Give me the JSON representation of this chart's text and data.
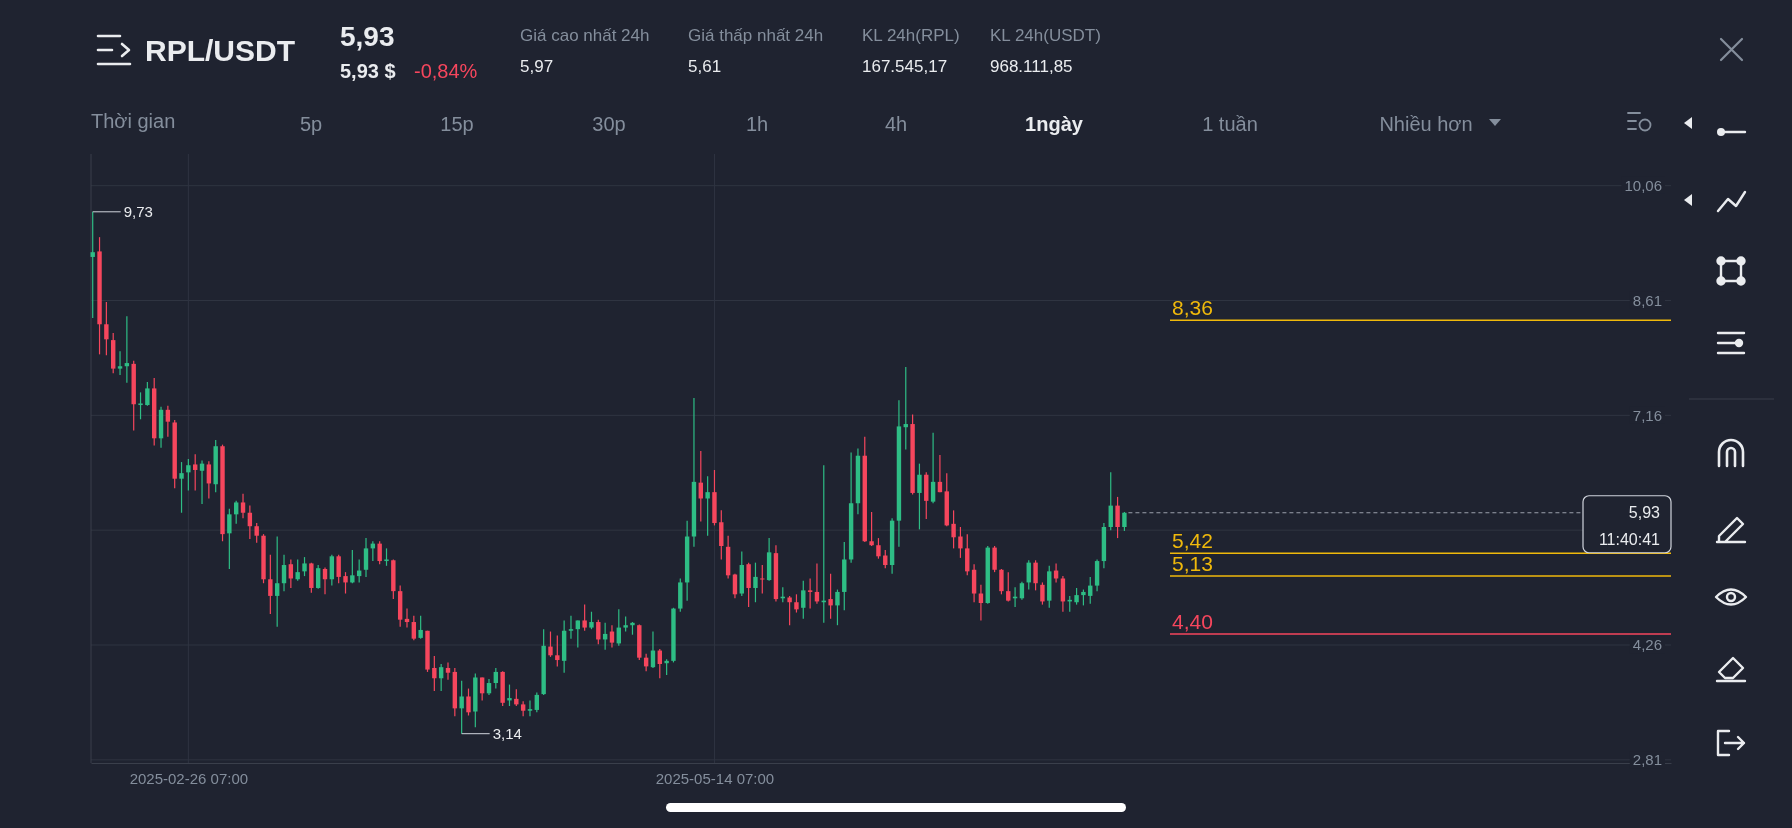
{
  "chart_data": {
    "type": "candlestick",
    "title": "RPL/USDT",
    "x": [
      "2025-02-12T07:00",
      "2025-02-13T07:00",
      "2025-02-14T07:00",
      "2025-02-15T07:00",
      "2025-02-16T07:00",
      "2025-02-17T07:00",
      "2025-02-18T07:00",
      "2025-02-19T07:00",
      "2025-02-20T07:00",
      "2025-02-21T07:00",
      "2025-02-22T07:00",
      "2025-02-23T07:00",
      "2025-02-24T07:00",
      "2025-02-25T07:00",
      "2025-02-26T07:00",
      "2025-02-27T07:00",
      "2025-02-28T07:00",
      "2025-03-01T07:00",
      "2025-03-02T07:00",
      "2025-03-03T07:00",
      "2025-03-04T07:00",
      "2025-03-05T07:00",
      "2025-03-06T07:00",
      "2025-03-07T07:00",
      "2025-03-08T07:00",
      "2025-03-09T07:00",
      "2025-03-10T07:00",
      "2025-03-11T07:00",
      "2025-03-12T07:00",
      "2025-03-13T07:00",
      "2025-03-14T07:00",
      "2025-03-15T07:00",
      "2025-03-16T07:00",
      "2025-03-17T07:00",
      "2025-03-18T07:00",
      "2025-03-19T07:00",
      "2025-03-20T07:00",
      "2025-03-21T07:00",
      "2025-03-22T07:00",
      "2025-03-23T07:00",
      "2025-03-24T07:00",
      "2025-03-25T07:00",
      "2025-03-26T07:00",
      "2025-03-27T07:00",
      "2025-03-28T07:00",
      "2025-03-29T07:00",
      "2025-03-30T07:00",
      "2025-03-31T07:00",
      "2025-04-01T07:00",
      "2025-04-02T07:00",
      "2025-04-03T07:00",
      "2025-04-04T07:00",
      "2025-04-05T07:00",
      "2025-04-06T07:00",
      "2025-04-07T07:00",
      "2025-04-08T07:00",
      "2025-04-09T07:00",
      "2025-04-10T07:00",
      "2025-04-11T07:00",
      "2025-04-12T07:00",
      "2025-04-13T07:00",
      "2025-04-14T07:00",
      "2025-04-15T07:00",
      "2025-04-16T07:00",
      "2025-04-17T07:00",
      "2025-04-18T07:00",
      "2025-04-19T07:00",
      "2025-04-20T07:00",
      "2025-04-21T07:00",
      "2025-04-22T07:00",
      "2025-04-23T07:00",
      "2025-04-24T07:00",
      "2025-04-25T07:00",
      "2025-04-26T07:00",
      "2025-04-27T07:00",
      "2025-04-28T07:00",
      "2025-04-29T07:00",
      "2025-04-30T07:00",
      "2025-05-01T07:00",
      "2025-05-02T07:00",
      "2025-05-03T07:00",
      "2025-05-04T07:00",
      "2025-05-05T07:00",
      "2025-05-06T07:00",
      "2025-05-07T07:00",
      "2025-05-08T07:00",
      "2025-05-09T07:00",
      "2025-05-10T07:00",
      "2025-05-11T07:00",
      "2025-05-12T07:00",
      "2025-05-13T07:00",
      "2025-05-14T07:00",
      "2025-05-15T07:00",
      "2025-05-16T07:00",
      "2025-05-17T07:00",
      "2025-05-18T07:00",
      "2025-05-19T07:00",
      "2025-05-20T07:00",
      "2025-05-21T07:00",
      "2025-05-22T07:00",
      "2025-05-23T07:00",
      "2025-05-24T07:00",
      "2025-05-25T07:00",
      "2025-05-26T07:00",
      "2025-05-27T07:00",
      "2025-05-28T07:00",
      "2025-05-29T07:00",
      "2025-05-30T07:00",
      "2025-05-31T07:00",
      "2025-06-01T07:00",
      "2025-06-02T07:00",
      "2025-06-03T07:00",
      "2025-06-04T07:00",
      "2025-06-05T07:00",
      "2025-06-06T07:00",
      "2025-06-07T07:00",
      "2025-06-08T07:00",
      "2025-06-09T07:00",
      "2025-06-10T07:00",
      "2025-06-11T07:00",
      "2025-06-12T07:00",
      "2025-06-13T07:00",
      "2025-06-14T07:00",
      "2025-06-15T07:00",
      "2025-06-16T07:00",
      "2025-06-17T07:00",
      "2025-06-18T07:00",
      "2025-06-19T07:00",
      "2025-06-20T07:00",
      "2025-06-21T07:00",
      "2025-06-22T07:00",
      "2025-06-23T07:00",
      "2025-06-24T07:00",
      "2025-06-25T07:00",
      "2025-06-26T07:00",
      "2025-06-27T07:00",
      "2025-06-28T07:00",
      "2025-06-29T07:00",
      "2025-06-30T07:00",
      "2025-07-01T07:00",
      "2025-07-02T07:00",
      "2025-07-03T07:00",
      "2025-07-04T07:00",
      "2025-07-05T07:00",
      "2025-07-06T07:00",
      "2025-07-07T07:00",
      "2025-07-08T07:00",
      "2025-07-09T07:00",
      "2025-07-10T07:00",
      "2025-07-11T07:00",
      "2025-07-12T07:00",
      "2025-07-13T07:00"
    ],
    "ohlc": [
      [
        9.16,
        9.73,
        8.39,
        9.22
      ],
      [
        9.23,
        9.41,
        7.93,
        8.31
      ],
      [
        8.31,
        8.59,
        7.92,
        8.12
      ],
      [
        8.11,
        8.2,
        7.69,
        7.75
      ],
      [
        7.75,
        7.97,
        7.67,
        7.78
      ],
      [
        7.78,
        8.41,
        7.57,
        7.82
      ],
      [
        7.81,
        7.85,
        6.97,
        7.3
      ],
      [
        7.29,
        7.45,
        7.11,
        7.31
      ],
      [
        7.29,
        7.58,
        7.28,
        7.5
      ],
      [
        7.5,
        7.63,
        6.78,
        6.87
      ],
      [
        6.87,
        7.27,
        6.75,
        7.23
      ],
      [
        7.23,
        7.28,
        6.89,
        7.08
      ],
      [
        7.07,
        7.1,
        6.24,
        6.36
      ],
      [
        6.36,
        6.57,
        5.93,
        6.43
      ],
      [
        6.44,
        6.61,
        6.21,
        6.53
      ],
      [
        6.54,
        6.67,
        6.21,
        6.47
      ],
      [
        6.46,
        6.59,
        6.04,
        6.55
      ],
      [
        6.54,
        6.58,
        6.11,
        6.3
      ],
      [
        6.29,
        6.85,
        6.19,
        6.77
      ],
      [
        6.77,
        6.79,
        5.57,
        5.66
      ],
      [
        5.67,
        5.98,
        5.22,
        5.91
      ],
      [
        5.91,
        6.08,
        5.79,
        6.06
      ],
      [
        6.06,
        6.17,
        5.86,
        5.93
      ],
      [
        5.93,
        6.02,
        5.6,
        5.76
      ],
      [
        5.76,
        5.8,
        5.55,
        5.64
      ],
      [
        5.64,
        5.66,
        5.04,
        5.09
      ],
      [
        5.09,
        5.4,
        4.65,
        4.88
      ],
      [
        4.88,
        5.63,
        4.49,
        5.04
      ],
      [
        5.04,
        5.4,
        4.94,
        5.27
      ],
      [
        5.28,
        5.34,
        4.98,
        5.1
      ],
      [
        5.09,
        5.34,
        5.07,
        5.18
      ],
      [
        5.19,
        5.37,
        5.13,
        5.29
      ],
      [
        5.29,
        5.3,
        4.92,
        4.98
      ],
      [
        4.98,
        5.27,
        4.97,
        5.23
      ],
      [
        5.22,
        5.24,
        4.9,
        5.09
      ],
      [
        5.09,
        5.4,
        5.01,
        5.38
      ],
      [
        5.38,
        5.4,
        5.04,
        5.12
      ],
      [
        5.13,
        5.18,
        4.91,
        5.05
      ],
      [
        5.05,
        5.46,
        5.04,
        5.14
      ],
      [
        5.13,
        5.34,
        5.05,
        5.2
      ],
      [
        5.21,
        5.61,
        5.12,
        5.48
      ],
      [
        5.48,
        5.57,
        5.32,
        5.54
      ],
      [
        5.54,
        5.57,
        5.28,
        5.32
      ],
      [
        5.32,
        5.48,
        5.26,
        5.34
      ],
      [
        5.33,
        5.34,
        4.84,
        4.94
      ],
      [
        4.94,
        5.01,
        4.49,
        4.58
      ],
      [
        4.59,
        4.72,
        4.48,
        4.55
      ],
      [
        4.55,
        4.63,
        4.32,
        4.34
      ],
      [
        4.35,
        4.63,
        4.34,
        4.45
      ],
      [
        4.44,
        4.44,
        3.92,
        3.95
      ],
      [
        3.97,
        4.12,
        3.68,
        3.84
      ],
      [
        3.84,
        4.02,
        3.68,
        3.98
      ],
      [
        3.97,
        4.04,
        3.82,
        3.91
      ],
      [
        3.92,
        3.97,
        3.36,
        3.46
      ],
      [
        3.46,
        3.81,
        3.14,
        3.61
      ],
      [
        3.61,
        3.71,
        3.37,
        3.41
      ],
      [
        3.42,
        3.9,
        3.22,
        3.85
      ],
      [
        3.85,
        3.85,
        3.56,
        3.65
      ],
      [
        3.65,
        3.83,
        3.63,
        3.78
      ],
      [
        3.78,
        3.97,
        3.71,
        3.92
      ],
      [
        3.92,
        3.93,
        3.49,
        3.53
      ],
      [
        3.56,
        3.76,
        3.49,
        3.59
      ],
      [
        3.58,
        3.7,
        3.49,
        3.51
      ],
      [
        3.51,
        3.55,
        3.36,
        3.43
      ],
      [
        3.43,
        3.56,
        3.36,
        3.45
      ],
      [
        3.44,
        3.66,
        3.41,
        3.63
      ],
      [
        3.64,
        4.46,
        3.63,
        4.25
      ],
      [
        4.24,
        4.43,
        4.11,
        4.13
      ],
      [
        4.13,
        4.38,
        3.99,
        4.07
      ],
      [
        4.06,
        4.57,
        3.91,
        4.44
      ],
      [
        4.44,
        4.63,
        4.34,
        4.46
      ],
      [
        4.46,
        4.57,
        4.23,
        4.57
      ],
      [
        4.57,
        4.77,
        4.44,
        4.48
      ],
      [
        4.48,
        4.68,
        4.46,
        4.55
      ],
      [
        4.55,
        4.58,
        4.27,
        4.33
      ],
      [
        4.33,
        4.54,
        4.2,
        4.4
      ],
      [
        4.43,
        4.51,
        4.23,
        4.29
      ],
      [
        4.28,
        4.71,
        4.25,
        4.48
      ],
      [
        4.48,
        4.62,
        4.43,
        4.51
      ],
      [
        4.51,
        4.55,
        4.39,
        4.54
      ],
      [
        4.51,
        4.52,
        4.07,
        4.1
      ],
      [
        4.1,
        4.15,
        3.93,
        3.99
      ],
      [
        3.98,
        4.43,
        3.97,
        4.19
      ],
      [
        4.19,
        4.21,
        3.84,
        4.02
      ],
      [
        4.03,
        4.08,
        3.88,
        4.06
      ],
      [
        4.06,
        4.73,
        4.04,
        4.72
      ],
      [
        4.72,
        5.1,
        4.68,
        5.05
      ],
      [
        5.05,
        5.83,
        4.82,
        5.63
      ],
      [
        5.63,
        7.38,
        5.5,
        6.32
      ],
      [
        6.31,
        6.71,
        5.82,
        6.11
      ],
      [
        6.11,
        6.39,
        5.64,
        6.19
      ],
      [
        6.19,
        6.47,
        5.77,
        5.8
      ],
      [
        5.81,
        5.96,
        5.34,
        5.51
      ],
      [
        5.5,
        5.64,
        5.1,
        5.14
      ],
      [
        5.15,
        5.16,
        4.85,
        4.9
      ],
      [
        4.91,
        5.44,
        4.88,
        5.27
      ],
      [
        5.28,
        5.3,
        4.74,
        4.98
      ],
      [
        4.98,
        5.3,
        4.8,
        5.12
      ],
      [
        5.1,
        5.27,
        4.91,
        5.09
      ],
      [
        5.08,
        5.61,
        5.07,
        5.43
      ],
      [
        5.42,
        5.52,
        4.81,
        4.84
      ],
      [
        4.85,
        4.99,
        4.8,
        4.87
      ],
      [
        4.86,
        4.88,
        4.51,
        4.8
      ],
      [
        4.8,
        4.9,
        4.67,
        4.71
      ],
      [
        4.73,
        5.07,
        4.59,
        4.95
      ],
      [
        4.95,
        5.1,
        4.72,
        4.93
      ],
      [
        4.93,
        5.29,
        4.78,
        4.81
      ],
      [
        4.8,
        6.53,
        4.54,
        4.82
      ],
      [
        4.84,
        5.16,
        4.59,
        4.76
      ],
      [
        4.76,
        4.96,
        4.51,
        4.93
      ],
      [
        4.93,
        5.56,
        4.7,
        5.34
      ],
      [
        5.34,
        6.69,
        5.3,
        6.05
      ],
      [
        6.05,
        6.74,
        5.91,
        6.65
      ],
      [
        6.65,
        6.89,
        5.56,
        5.57
      ],
      [
        5.57,
        5.94,
        5.51,
        5.52
      ],
      [
        5.52,
        5.61,
        5.35,
        5.38
      ],
      [
        5.39,
        5.46,
        5.23,
        5.27
      ],
      [
        5.27,
        5.86,
        5.16,
        5.83
      ],
      [
        5.83,
        7.35,
        5.5,
        7.02
      ],
      [
        7.01,
        7.77,
        6.73,
        7.05
      ],
      [
        7.05,
        7.17,
        6.16,
        6.18
      ],
      [
        6.18,
        6.55,
        5.72,
        6.41
      ],
      [
        6.41,
        6.44,
        5.85,
        6.08
      ],
      [
        6.07,
        6.94,
        6.05,
        6.32
      ],
      [
        6.32,
        6.66,
        6.19,
        6.19
      ],
      [
        6.2,
        6.43,
        5.76,
        5.77
      ],
      [
        5.79,
        5.96,
        5.48,
        5.62
      ],
      [
        5.63,
        5.75,
        5.36,
        5.48
      ],
      [
        5.48,
        5.66,
        5.14,
        5.19
      ],
      [
        5.21,
        5.28,
        4.8,
        4.91
      ],
      [
        4.91,
        5.02,
        4.57,
        4.79
      ],
      [
        4.79,
        5.51,
        4.78,
        5.49
      ],
      [
        5.49,
        5.51,
        5.18,
        5.21
      ],
      [
        5.21,
        5.22,
        4.9,
        4.94
      ],
      [
        4.94,
        5.18,
        4.81,
        4.82
      ],
      [
        4.85,
        4.99,
        4.74,
        4.87
      ],
      [
        4.85,
        5.06,
        4.83,
        5.04
      ],
      [
        5.05,
        5.33,
        4.96,
        5.3
      ],
      [
        5.3,
        5.33,
        4.95,
        5.04
      ],
      [
        5.02,
        5.05,
        4.77,
        4.81
      ],
      [
        4.82,
        5.26,
        4.73,
        5.19
      ],
      [
        5.2,
        5.29,
        5.05,
        5.1
      ],
      [
        5.1,
        5.13,
        4.68,
        4.81
      ],
      [
        4.81,
        4.88,
        4.68,
        4.83
      ],
      [
        4.8,
        4.98,
        4.77,
        4.89
      ],
      [
        4.89,
        4.96,
        4.76,
        4.93
      ],
      [
        4.88,
        5.12,
        4.78,
        5.01
      ],
      [
        5.01,
        5.34,
        4.94,
        5.32
      ],
      [
        5.32,
        5.8,
        5.23,
        5.75
      ],
      [
        5.75,
        6.44,
        5.71,
        6.02
      ],
      [
        6.02,
        6.13,
        5.61,
        5.75
      ],
      [
        5.75,
        5.94,
        5.7,
        5.93
      ]
    ],
    "xlim": [
      "2025-02-12T01:00",
      "2025-10-01T07:00"
    ],
    "xticks": [
      {
        "value": "2025-02-26T07:00",
        "label": "2025-02-26 07:00"
      },
      {
        "value": "2025-05-14T07:00",
        "label": "2025-05-14 07:00"
      }
    ],
    "ylim": [
      2.77,
      10.46
    ],
    "yticks": [
      {
        "value": 10.06,
        "label": "10,06"
      },
      {
        "value": 8.61,
        "label": "8,61"
      },
      {
        "value": 7.16,
        "label": "7,16"
      },
      {
        "value": 5.71,
        "label": null
      },
      {
        "value": 4.26,
        "label": "4,26"
      },
      {
        "value": 2.81,
        "label": "2,81"
      }
    ],
    "grid": true,
    "ref_lines": [
      {
        "axis": "y",
        "value": 8.36,
        "label": "8,36",
        "color": "#f0b90b"
      },
      {
        "axis": "y",
        "value": 5.42,
        "label": "5,42",
        "color": "#f0b90b"
      },
      {
        "axis": "y",
        "value": 5.13,
        "label": "5,13",
        "color": "#f0b90b"
      },
      {
        "axis": "y",
        "value": 4.4,
        "label": "4,40",
        "color": "#f6465d"
      },
      {
        "axis": "y",
        "value": 5.93,
        "label": "5,93",
        "color": "#9aa0aa",
        "line_style": "dashed"
      }
    ],
    "annotations": [
      {
        "text": "9,73",
        "x": "2025-02-12T07:00",
        "y": 9.73
      },
      {
        "text": "3,14",
        "x": "2025-04-07T07:00",
        "y": 3.14
      },
      "5,93",
      "5,93 $",
      "-0,84%",
      "Giá cao nhất 24h",
      "5,97",
      "Giá thấp nhất 24h",
      "5,61",
      "KL 24h(RPL)",
      "167.545,17",
      "KL 24h(USDT)",
      "968.111,85",
      "Thời gian",
      "5p",
      "15p",
      "30p",
      "1h",
      "4h",
      "1ngày",
      "1 tuần",
      "Nhiều hơn",
      "11:40:41"
    ]
  }
}
